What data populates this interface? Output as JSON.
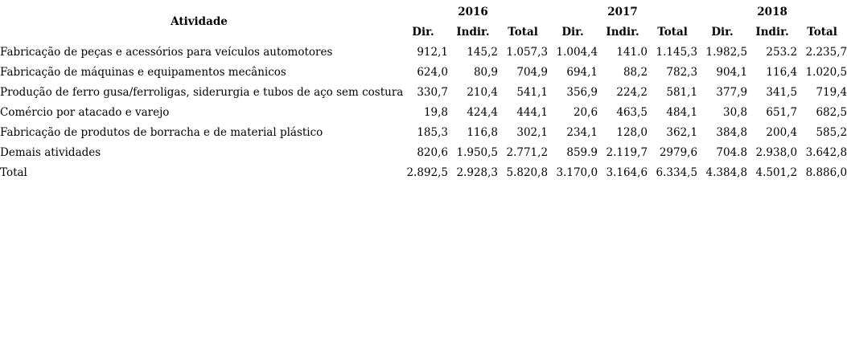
{
  "colors": {
    "text": "#000000",
    "background": "#ffffff"
  },
  "table": {
    "activity_header": "Atividade",
    "year_groups": [
      {
        "year": "2016",
        "sub": [
          "Dir.",
          "Indir.",
          "Total"
        ]
      },
      {
        "year": "2017",
        "sub": [
          "Dir.",
          "Indir.",
          "Total"
        ]
      },
      {
        "year": "2018",
        "sub": [
          "Dir.",
          "Indir.",
          "Total"
        ]
      }
    ],
    "rows": [
      {
        "activity": "Fabricação de peças e acessórios para veículos automotores",
        "values": [
          "912,1",
          "145,2",
          "1.057,3",
          "1.004,4",
          "141.0",
          "1.145,3",
          "1.982,5",
          "253.2",
          "2.235,7"
        ]
      },
      {
        "activity": "Fabricação de máquinas e equipamentos mecânicos",
        "values": [
          "624,0",
          "80,9",
          "704,9",
          "694,1",
          "88,2",
          "782,3",
          "904,1",
          "116,4",
          "1.020,5"
        ]
      },
      {
        "activity": "Produção de ferro gusa/ferroligas, siderurgia e tubos de aço sem costura",
        "values": [
          "330,7",
          "210,4",
          "541,1",
          "356,9",
          "224,2",
          "581,1",
          "377,9",
          "341,5",
          "719,4"
        ]
      },
      {
        "activity": "Comércio por atacado e varejo",
        "values": [
          "19,8",
          "424,4",
          "444,1",
          "20,6",
          "463,5",
          "484,1",
          "30,8",
          "651,7",
          "682,5"
        ]
      },
      {
        "activity": "Fabricação de produtos de borracha e de material plástico",
        "values": [
          "185,3",
          "116,8",
          "302,1",
          "234,1",
          "128,0",
          "362,1",
          "384,8",
          "200,4",
          "585,2"
        ]
      },
      {
        "activity": "Demais atividades",
        "values": [
          "820,6",
          "1.950,5",
          "2.771,2",
          "859.9",
          "2.119,7",
          "2979,6",
          "704.8",
          "2.938,0",
          "3.642,8"
        ]
      },
      {
        "activity": "Total",
        "values": [
          "2.892,5",
          "2.928,3",
          "5.820,8",
          "3.170,0",
          "3.164,6",
          "6.334,5",
          "4.384,8",
          "4.501,2",
          "8.886,0"
        ]
      }
    ]
  }
}
